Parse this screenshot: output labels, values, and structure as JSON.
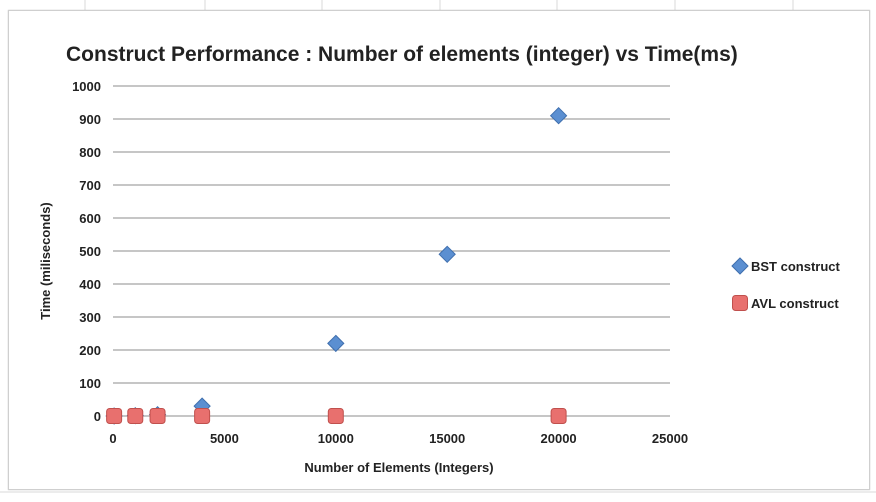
{
  "chart_data": {
    "type": "scatter",
    "title": "Construct Performance : Number of elements (integer) vs Time(ms)",
    "xlabel": "Number of Elements (Integers)",
    "ylabel": "Time (miliseconds)",
    "xlim": [
      0,
      25000
    ],
    "ylim": [
      0,
      1000
    ],
    "x_ticks": [
      0,
      5000,
      10000,
      15000,
      20000,
      25000
    ],
    "y_ticks": [
      0,
      100,
      200,
      300,
      400,
      500,
      600,
      700,
      800,
      900,
      1000
    ],
    "grid": "horizontal",
    "legend_position": "right",
    "series": [
      {
        "name": "BST construct",
        "marker": "diamond",
        "color": "#5b8fd1",
        "x": [
          50,
          1000,
          2000,
          4000,
          10000,
          15000,
          20000
        ],
        "y": [
          0,
          1,
          4,
          30,
          220,
          490,
          910
        ]
      },
      {
        "name": "AVL construct",
        "marker": "square",
        "color": "#e8706e",
        "x": [
          50,
          1000,
          2000,
          4000,
          10000,
          20000
        ],
        "y": [
          0,
          0,
          0,
          0,
          0,
          0
        ]
      }
    ]
  }
}
